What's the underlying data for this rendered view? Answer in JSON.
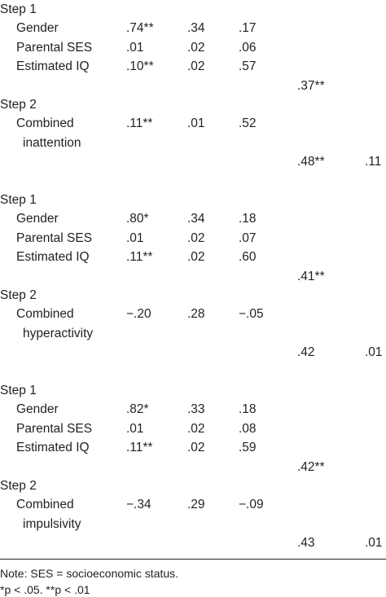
{
  "table": {
    "blocks": [
      {
        "rows": [
          {
            "step": "Step 1"
          },
          {
            "label": "Gender",
            "b": ".74**",
            "se": ".34",
            "beta": ".17"
          },
          {
            "label": "Parental SES",
            "b": ".01",
            "se": ".02",
            "beta": ".06"
          },
          {
            "label": "Estimated IQ",
            "b": ".10**",
            "se": ".02",
            "beta": ".57"
          },
          {
            "r2": ".37**"
          },
          {
            "step": "Step 2"
          },
          {
            "label": "Combined",
            "b": ".11**",
            "se": ".01",
            "beta": ".52"
          },
          {
            "label2": "inattention"
          },
          {
            "r2": ".48**",
            "delta": ".11"
          }
        ]
      },
      {
        "rows": [
          {
            "step": "Step 1"
          },
          {
            "label": "Gender",
            "b": ".80*",
            "se": ".34",
            "beta": ".18"
          },
          {
            "label": "Parental SES",
            "b": ".01",
            "se": ".02",
            "beta": ".07"
          },
          {
            "label": "Estimated IQ",
            "b": ".11**",
            "se": ".02",
            "beta": ".60"
          },
          {
            "r2": ".41**"
          },
          {
            "step": "Step 2"
          },
          {
            "label": "Combined",
            "b": "−.20",
            "se": ".28",
            "beta": "−.05"
          },
          {
            "label2": "hyperactivity"
          },
          {
            "r2": ".42",
            "delta": ".01"
          }
        ]
      },
      {
        "rows": [
          {
            "step": "Step 1"
          },
          {
            "label": "Gender",
            "b": ".82*",
            "se": ".33",
            "beta": ".18"
          },
          {
            "label": "Parental SES",
            "b": ".01",
            "se": ".02",
            "beta": ".08"
          },
          {
            "label": "Estimated IQ",
            "b": ".11**",
            "se": ".02",
            "beta": ".59"
          },
          {
            "r2": ".42**"
          },
          {
            "step": "Step 2"
          },
          {
            "label": "Combined",
            "b": "−.34",
            "se": ".29",
            "beta": "−.09"
          },
          {
            "label2": "impulsivity"
          },
          {
            "r2": ".43",
            "delta": ".01"
          }
        ]
      }
    ]
  },
  "notes": [
    "Note: SES = socioeconomic status.",
    "*p < .05. **p < .01"
  ]
}
